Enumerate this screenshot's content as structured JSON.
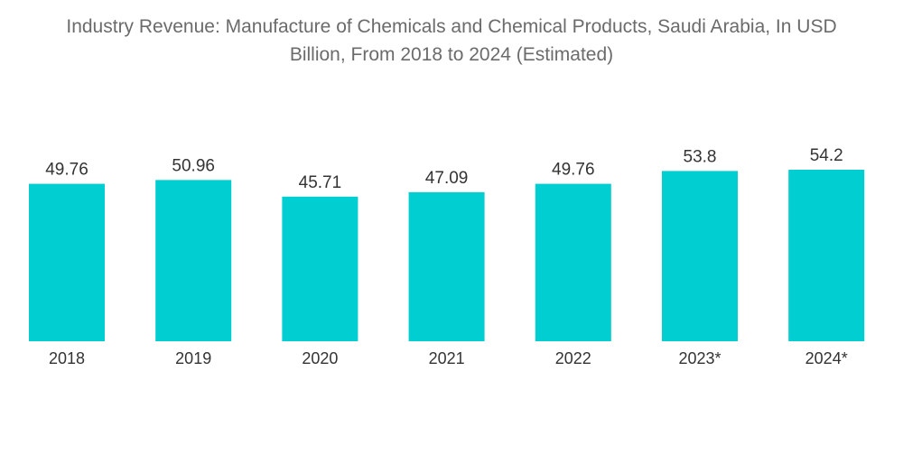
{
  "title": {
    "line1": "Industry Revenue: Manufacture of Chemicals and Chemical Products, Saudi Arabia, In USD",
    "line2": "Billion, From 2018 to 2024 (Estimated)"
  },
  "colors": {
    "bar": "#00CED1",
    "title": "#6B6B6B",
    "text": "#333333"
  },
  "chart_data": {
    "type": "bar",
    "title": "Industry Revenue: Manufacture of Chemicals and Chemical Products, Saudi Arabia, In USD Billion, From 2018 to 2024 (Estimated)",
    "categories": [
      "2018",
      "2019",
      "2020",
      "2021",
      "2022",
      "2023*",
      "2024*"
    ],
    "values": [
      49.76,
      50.96,
      45.71,
      47.09,
      49.76,
      53.8,
      54.2
    ],
    "value_labels": [
      "49.76",
      "50.96",
      "45.71",
      "47.09",
      "49.76",
      "53.8",
      "54.2"
    ],
    "xlabel": "",
    "ylabel": "",
    "ylim": [
      0,
      54.2
    ],
    "grid": false,
    "legend": "none"
  }
}
